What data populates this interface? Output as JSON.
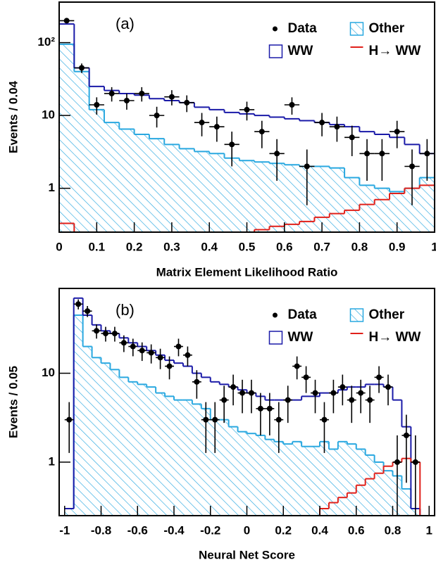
{
  "chart_data": [
    {
      "type": "histogram",
      "panel_label": "(a)",
      "xlabel": "Matrix Element Likelihood Ratio",
      "ylabel": "Events / 0.04",
      "log_y": true,
      "legend": "upper right",
      "bins": [
        0,
        0.04,
        0.08,
        0.12,
        0.16,
        0.2,
        0.24,
        0.28,
        0.32,
        0.36,
        0.4,
        0.44,
        0.48,
        0.52,
        0.56,
        0.6,
        0.64,
        0.68,
        0.72,
        0.76,
        0.8,
        0.84,
        0.88,
        0.92,
        0.96,
        1
      ],
      "xlim": [
        0,
        1
      ],
      "xticks": [
        0,
        0.1,
        0.2,
        0.3,
        0.4,
        0.5,
        0.6,
        0.7,
        0.8,
        0.9,
        1
      ],
      "ylim": [
        0.25,
        360
      ],
      "yticks": [
        1,
        10,
        {
          "value": 100,
          "label": "10²"
        }
      ],
      "series": [
        {
          "name": "Data",
          "style": "points",
          "color": "#000000",
          "values": [
            200,
            45,
            14,
            20,
            16,
            20,
            10,
            18,
            15,
            8,
            7,
            4,
            12,
            6,
            3,
            14,
            2,
            8,
            7,
            5,
            3,
            3,
            6,
            2,
            3
          ]
        },
        {
          "name": "Other",
          "style": "hatched",
          "color": "#29a8e0",
          "values": [
            95,
            40,
            12,
            8,
            6.5,
            5.5,
            4.8,
            4,
            3.5,
            3.2,
            3,
            2.6,
            2.4,
            2.3,
            2.2,
            2.1,
            2,
            2,
            1.9,
            1.4,
            1.1,
            1,
            0.9,
            1,
            1.4
          ]
        },
        {
          "name": "WW",
          "style": "step",
          "color": "#1a1aa8",
          "values": [
            180,
            45,
            25,
            22,
            20,
            19,
            17,
            16,
            15,
            13,
            12,
            11,
            10.5,
            10,
            9.5,
            9,
            8.5,
            8,
            7.5,
            7,
            6,
            5.5,
            5,
            4,
            3
          ]
        },
        {
          "name": "H→ WW",
          "style": "step",
          "color": "#e0201a",
          "values": [
            0.33,
            0.2,
            0.2,
            0.2,
            0.2,
            0.2,
            0.2,
            0.2,
            0.2,
            0.2,
            0.2,
            0.2,
            0.25,
            0.27,
            0.3,
            0.32,
            0.35,
            0.4,
            0.45,
            0.5,
            0.6,
            0.7,
            0.85,
            1,
            1.1
          ]
        }
      ]
    },
    {
      "type": "histogram",
      "panel_label": "(b)",
      "xlabel": "Neural Net Score",
      "ylabel": "Events / 0.05",
      "log_y": true,
      "legend": "upper right",
      "bins": [
        -1,
        -0.95,
        -0.9,
        -0.85,
        -0.8,
        -0.75,
        -0.7,
        -0.65,
        -0.6,
        -0.55,
        -0.5,
        -0.45,
        -0.4,
        -0.35,
        -0.3,
        -0.25,
        -0.2,
        -0.15,
        -0.1,
        -0.05,
        0,
        0.05,
        0.1,
        0.15,
        0.2,
        0.25,
        0.3,
        0.35,
        0.4,
        0.45,
        0.5,
        0.55,
        0.6,
        0.65,
        0.7,
        0.75,
        0.8,
        0.85,
        0.9,
        0.95,
        1
      ],
      "xlim": [
        -1.03,
        1.03
      ],
      "xticks": [
        -1,
        -0.8,
        -0.6,
        -0.4,
        -0.2,
        0,
        0.2,
        0.4,
        0.6,
        0.8,
        1
      ],
      "ylim": [
        0.25,
        90
      ],
      "yticks": [
        1,
        10
      ],
      "series": [
        {
          "name": "Data",
          "style": "points",
          "color": "#000000",
          "values": [
            3,
            60,
            50,
            30,
            28,
            28,
            22,
            20,
            18,
            17,
            15,
            12,
            20,
            16,
            8,
            3,
            3,
            5,
            7,
            6,
            6,
            4,
            4,
            3,
            5,
            12,
            9,
            6,
            3,
            6,
            7,
            5,
            6,
            5,
            9,
            7,
            1,
            2,
            1,
            null
          ]
        },
        {
          "name": "Other",
          "style": "hatched",
          "color": "#29a8e0",
          "values": [
            0.3,
            45,
            20,
            15,
            13,
            11,
            9,
            8,
            7.5,
            7,
            6,
            5.5,
            5,
            5,
            4.5,
            4,
            3,
            3,
            2.5,
            2.2,
            2.1,
            2,
            1.8,
            1.7,
            1.6,
            1.7,
            1.5,
            1.5,
            1.7,
            1.4,
            1.7,
            1.6,
            1.4,
            1.2,
            1,
            0.8,
            0.7,
            0.5,
            0.3,
            0
          ]
        },
        {
          "name": "WW",
          "style": "step",
          "color": "#1a1aa8",
          "values": [
            0.3,
            70,
            45,
            35,
            30,
            28,
            25,
            22,
            20,
            18,
            16,
            14,
            13,
            12,
            10,
            9,
            8,
            7.5,
            7,
            6.5,
            6,
            5.5,
            5,
            5,
            5,
            5,
            5.5,
            5.5,
            6,
            6,
            6.5,
            7,
            7,
            7.5,
            7.5,
            7,
            5,
            2.5,
            0.3,
            0
          ]
        },
        {
          "name": "H→ WW",
          "style": "step",
          "color": "#e0201a",
          "values": [
            0,
            0,
            0,
            0,
            0,
            0,
            0,
            0,
            0,
            0,
            0,
            0,
            0,
            0,
            0,
            0,
            0,
            0,
            0,
            0,
            0,
            0,
            0,
            0,
            0,
            0,
            0,
            0,
            0.3,
            0.35,
            0.4,
            0.45,
            0.55,
            0.65,
            0.75,
            0.9,
            1,
            1.1,
            1,
            0
          ]
        }
      ]
    }
  ]
}
